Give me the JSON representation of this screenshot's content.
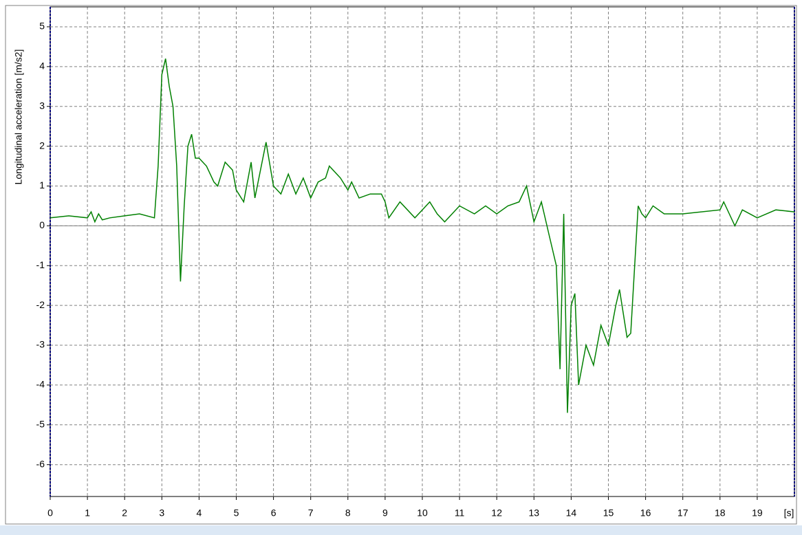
{
  "chart_data": {
    "type": "line",
    "y_label": "Longitudinal acceleration [m/s2]",
    "x_label": "[s]",
    "x": [
      0,
      0.5,
      1.0,
      1.1,
      1.2,
      1.3,
      1.4,
      1.6,
      2.0,
      2.4,
      2.8,
      2.9,
      3.0,
      3.1,
      3.2,
      3.3,
      3.4,
      3.5,
      3.6,
      3.7,
      3.8,
      3.9,
      4.0,
      4.2,
      4.4,
      4.5,
      4.7,
      4.9,
      5.0,
      5.2,
      5.4,
      5.5,
      5.8,
      6.0,
      6.2,
      6.4,
      6.6,
      6.8,
      7.0,
      7.2,
      7.4,
      7.5,
      7.8,
      8.0,
      8.1,
      8.3,
      8.6,
      8.9,
      9.0,
      9.1,
      9.4,
      9.6,
      9.8,
      10.0,
      10.2,
      10.4,
      10.6,
      10.8,
      11.0,
      11.4,
      11.7,
      12.0,
      12.3,
      12.6,
      12.8,
      13.0,
      13.2,
      13.4,
      13.6,
      13.7,
      13.8,
      13.9,
      14.0,
      14.1,
      14.2,
      14.4,
      14.6,
      14.8,
      15.0,
      15.2,
      15.3,
      15.5,
      15.6,
      15.8,
      15.9,
      16.0,
      16.2,
      16.5,
      17.0,
      18.0,
      18.1,
      18.4,
      18.6,
      19.0,
      19.5,
      20.0
    ],
    "series": [
      {
        "color": "#008000",
        "values": [
          0.2,
          0.25,
          0.2,
          0.35,
          0.1,
          0.3,
          0.15,
          0.2,
          0.25,
          0.3,
          0.2,
          1.5,
          3.8,
          4.2,
          3.5,
          3.0,
          1.5,
          -1.4,
          0.5,
          2.0,
          2.3,
          1.7,
          1.7,
          1.5,
          1.1,
          1.0,
          1.6,
          1.4,
          0.9,
          0.6,
          1.6,
          0.7,
          2.1,
          1.0,
          0.8,
          1.3,
          0.8,
          1.2,
          0.7,
          1.1,
          1.2,
          1.5,
          1.2,
          0.9,
          1.1,
          0.7,
          0.8,
          0.8,
          0.6,
          0.2,
          0.6,
          0.4,
          0.2,
          0.4,
          0.6,
          0.3,
          0.1,
          0.3,
          0.5,
          0.3,
          0.5,
          0.3,
          0.5,
          0.6,
          1.0,
          0.1,
          0.6,
          -0.2,
          -1.0,
          -3.6,
          0.3,
          -4.7,
          -2.0,
          -1.7,
          -4.0,
          -3.0,
          -3.5,
          -2.5,
          -3.0,
          -2.0,
          -1.6,
          -2.8,
          -2.7,
          0.5,
          0.3,
          0.2,
          0.5,
          0.3,
          0.3,
          0.4,
          0.6,
          0.0,
          0.4,
          0.2,
          0.4,
          0.35
        ]
      }
    ],
    "xlim": [
      0,
      20
    ],
    "ylim": [
      -6.8,
      5.5
    ],
    "xticks": [
      0,
      1,
      2,
      3,
      4,
      5,
      6,
      7,
      8,
      9,
      10,
      11,
      12,
      13,
      14,
      15,
      16,
      17,
      18,
      19
    ],
    "yticks": [
      -6,
      -5,
      -4,
      -3,
      -2,
      -1,
      0,
      1,
      2,
      3,
      4,
      5
    ],
    "grid": true
  }
}
